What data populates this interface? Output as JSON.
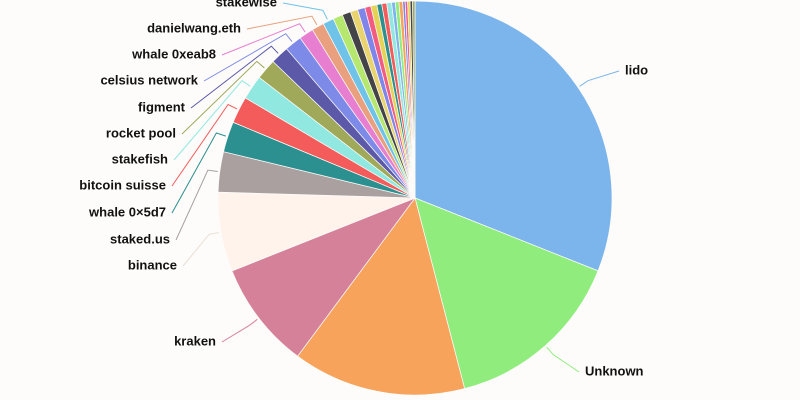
{
  "chart_data": {
    "type": "pie",
    "categories": [
      "lido",
      "Unknown",
      null,
      "kraken",
      "binance",
      "staked.us",
      "whale 0×5d7",
      "bitcoin suisse",
      "stakefish",
      "rocket pool",
      "figment",
      "celsius network",
      "whale 0xeab8",
      "danielwang.eth",
      "stakewise",
      null,
      null,
      null,
      null,
      null,
      null,
      null,
      null,
      null,
      null,
      null,
      null,
      null,
      null,
      null,
      null,
      null
    ],
    "values": [
      31,
      14.9,
      14.2,
      8.8,
      6.5,
      3.3,
      2.5,
      2.2,
      2.0,
      1.7,
      1.5,
      1.4,
      1.2,
      1.0,
      0.9,
      0.8,
      0.7,
      0.6,
      0.6,
      0.5,
      0.5,
      0.4,
      0.4,
      0.4,
      0.3,
      0.3,
      0.3,
      0.2,
      0.2,
      0.2,
      0.2,
      0.2
    ],
    "colors": [
      "#7cb5ec",
      "#90ed7d",
      "#f7a35c",
      "#d6819a",
      "#fff3ec",
      "#a9a09f",
      "#2b908f",
      "#f45b5b",
      "#91e8e1",
      "#a0a85a",
      "#5c5aa8",
      "#7e8ae8",
      "#e87ed0",
      "#e8a07e",
      "#6fc3e8",
      "#b6e86f",
      "#434348",
      "#e8d36f",
      "#8085e9",
      "#f15c80",
      "#e4d354",
      "#2b908f",
      "#f45b5b",
      "#91e8e1",
      "#7cb5ec",
      "#90ed7d",
      "#f7a35c",
      "#8085e9",
      "#f15c80",
      "#e4d354",
      "#434348",
      "#a0a85a"
    ]
  }
}
